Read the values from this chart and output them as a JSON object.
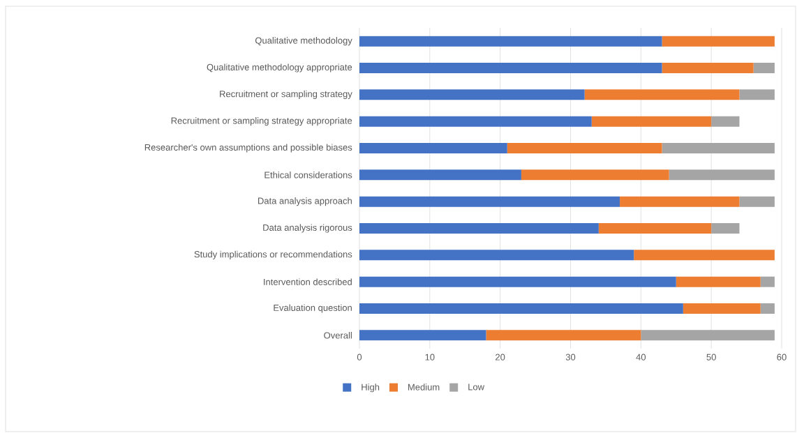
{
  "chart_data": {
    "type": "bar",
    "orientation": "horizontal",
    "stacked": true,
    "categories": [
      "Qualitative methodology",
      "Qualitative methodology appropriate",
      "Recruitment or sampling strategy",
      " Recruitment or sampling strategy appropriate",
      "Researcher's own assumptions and possible biases",
      "Ethical considerations",
      "Data analysis approach",
      "Data analysis rigorous",
      "Study implications or recommendations",
      "Intervention described",
      "Evaluation question",
      "Overall"
    ],
    "series": [
      {
        "name": "High",
        "color": "#4472c4",
        "values": [
          43,
          43,
          32,
          33,
          21,
          23,
          37,
          34,
          39,
          45,
          46,
          18
        ]
      },
      {
        "name": "Medium",
        "color": "#ed7d31",
        "values": [
          16,
          13,
          22,
          17,
          22,
          21,
          17,
          16,
          20,
          12,
          11,
          22
        ]
      },
      {
        "name": "Low",
        "color": "#a5a5a5",
        "values": [
          0,
          3,
          5,
          4,
          16,
          15,
          5,
          4,
          0,
          2,
          2,
          19
        ]
      }
    ],
    "xlim": [
      0,
      60
    ],
    "xticks": [
      0,
      10,
      20,
      30,
      40,
      50,
      60
    ],
    "grid": "x",
    "legend": "bottom"
  }
}
